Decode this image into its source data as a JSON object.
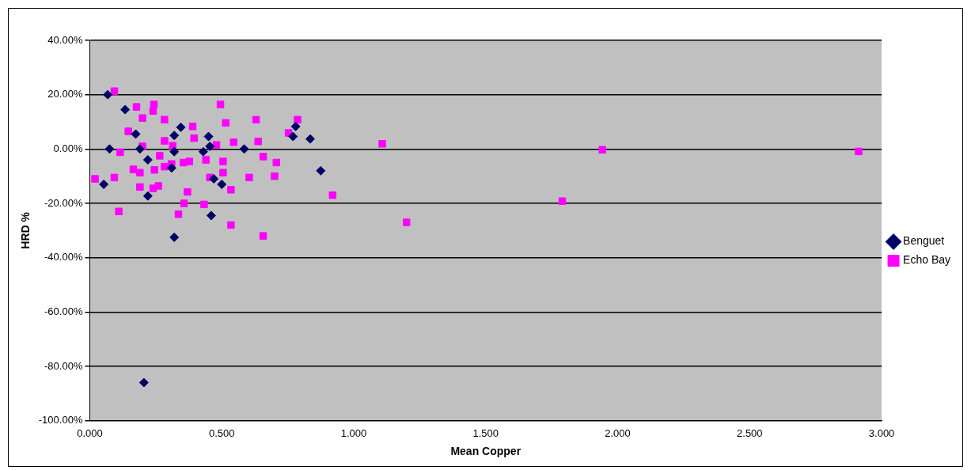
{
  "chart_data": {
    "type": "scatter",
    "xlabel": "Mean Copper",
    "ylabel": "HRD %",
    "grid": "y",
    "legend": "right",
    "xlim": [
      0,
      3
    ],
    "xticks": [
      {
        "value": 0,
        "label": "0.000"
      },
      {
        "value": 0.5,
        "label": "0.500"
      },
      {
        "value": 1,
        "label": "1.000"
      },
      {
        "value": 1.5,
        "label": "1.500"
      },
      {
        "value": 2,
        "label": "2.000"
      },
      {
        "value": 2.5,
        "label": "2.500"
      },
      {
        "value": 3,
        "label": "3.000"
      }
    ],
    "ylim": [
      -100,
      40
    ],
    "yticks": [
      {
        "value": -100,
        "label": "-100.00%"
      },
      {
        "value": -80,
        "label": "-80.00%"
      },
      {
        "value": -60,
        "label": "-60.00%"
      },
      {
        "value": -40,
        "label": "-40.00%"
      },
      {
        "value": -20,
        "label": "-20.00%"
      },
      {
        "value": 0,
        "label": "0.00%"
      },
      {
        "value": 20,
        "label": "20.00%"
      },
      {
        "value": 40,
        "label": "40.00%"
      }
    ],
    "series": [
      {
        "name": "Benguet",
        "color": "#000066",
        "marker": "diamond",
        "x": [
          0.068,
          0.075,
          0.053,
          0.134,
          0.174,
          0.19,
          0.22,
          0.22,
          0.205,
          0.32,
          0.345,
          0.32,
          0.31,
          0.32,
          0.43,
          0.45,
          0.455,
          0.47,
          0.46,
          0.49,
          0.5,
          0.585,
          0.77,
          0.78,
          0.835,
          0.875
        ],
        "values": [
          20,
          0,
          -13,
          14.5,
          5.5,
          0,
          -4,
          -17.3,
          -86,
          5,
          8,
          -1,
          -7,
          -32.5,
          -1,
          4.6,
          1,
          -11,
          -24.5,
          null,
          -13,
          0,
          4.6,
          8.3,
          3.7,
          -8
        ]
      },
      {
        "name": "Echo Bay",
        "color": "#ff00ff",
        "marker": "square",
        "x": [
          0.02,
          0.093,
          0.093,
          0.11,
          0.115,
          0.146,
          0.165,
          0.177,
          0.19,
          0.2,
          0.2,
          0.19,
          0.243,
          0.24,
          0.24,
          0.26,
          0.245,
          0.265,
          0.283,
          0.283,
          0.283,
          0.31,
          0.314,
          0.336,
          0.355,
          0.357,
          0.37,
          0.377,
          0.39,
          0.395,
          0.44,
          0.433,
          0.455,
          0.48,
          0.495,
          0.505,
          0.505,
          0.515,
          0.535,
          0.535,
          0.545,
          0.604,
          0.62,
          0.63,
          0.638,
          0.657,
          0.657,
          0.707,
          0.7,
          0.753,
          0.787,
          0.92,
          1.108,
          1.2,
          1.79,
          1.942,
          2.913
        ],
        "values": [
          -11,
          21.3,
          -10.5,
          -23,
          -1.2,
          6.5,
          -7.5,
          15.5,
          -8.7,
          11.4,
          1,
          -14,
          16.4,
          14,
          -14.5,
          -13.6,
          -7.7,
          -2.5,
          10.8,
          3,
          -6.5,
          -5.5,
          1.2,
          -24,
          -5,
          -20,
          -15.8,
          -4.6,
          8.3,
          4,
          -4,
          -20.4,
          -10.5,
          1.5,
          16.4,
          -4.6,
          -8.7,
          9.6,
          -15,
          -28,
          2.5,
          -10.5,
          null,
          10.8,
          2.8,
          -2.8,
          -32,
          -5,
          -10,
          5.9,
          10.8,
          -17,
          1.9,
          -27,
          -19.2,
          -0.3,
          -0.9
        ]
      }
    ]
  }
}
